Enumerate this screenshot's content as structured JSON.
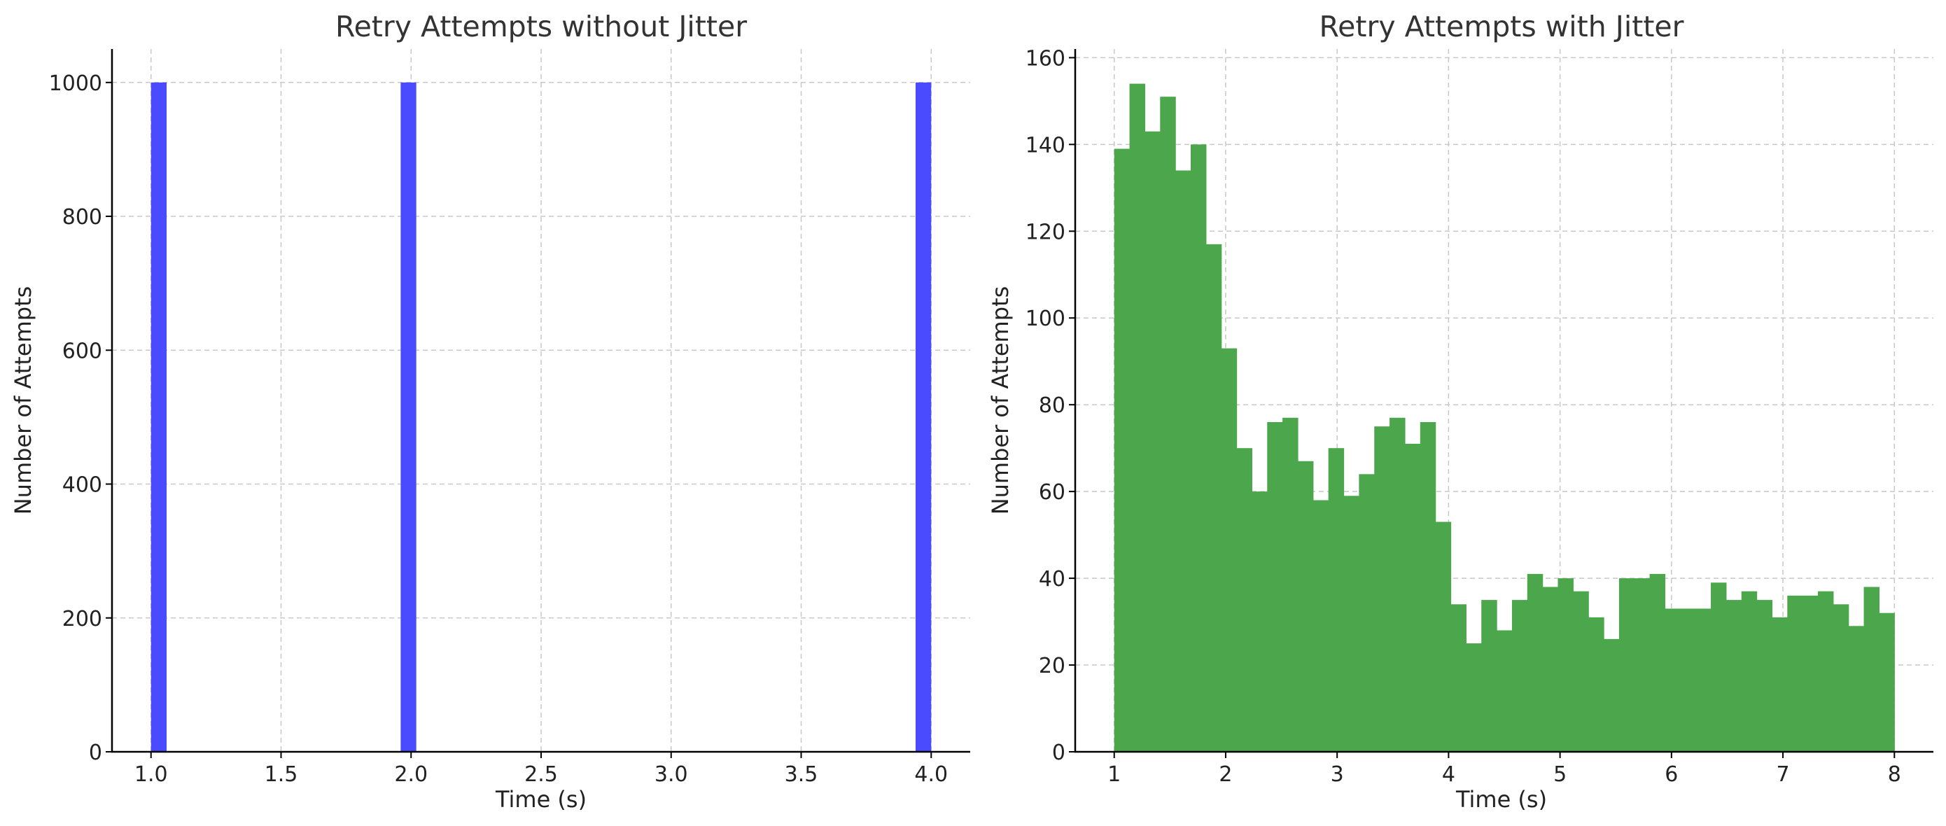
{
  "chart_data": [
    {
      "type": "bar",
      "histogram": true,
      "title": "Retry Attempts without Jitter",
      "xlabel": "Time (s)",
      "ylabel": "Number of Attempts",
      "xlim": [
        0.85,
        4.15
      ],
      "ylim": [
        0,
        1050
      ],
      "xticks": [
        1.0,
        1.5,
        2.0,
        2.5,
        3.0,
        3.5,
        4.0
      ],
      "xtick_labels": [
        "1.0",
        "1.5",
        "2.0",
        "2.5",
        "3.0",
        "3.5",
        "4.0"
      ],
      "yticks": [
        0,
        200,
        400,
        600,
        800,
        1000
      ],
      "ytick_labels": [
        "0",
        "200",
        "400",
        "600",
        "800",
        "1000"
      ],
      "grid": true,
      "color": "#4a4aff",
      "bin_width": 0.06,
      "bin_starts": [
        1.0,
        1.96,
        3.94
      ],
      "values": [
        1000,
        1000,
        1000
      ]
    },
    {
      "type": "bar",
      "histogram": true,
      "title": "Retry Attempts with Jitter",
      "xlabel": "Time (s)",
      "ylabel": "Number of Attempts",
      "xlim": [
        0.65,
        8.35
      ],
      "ylim": [
        0,
        162
      ],
      "xticks": [
        1,
        2,
        3,
        4,
        5,
        6,
        7,
        8
      ],
      "xtick_labels": [
        "1",
        "2",
        "3",
        "4",
        "5",
        "6",
        "7",
        "8"
      ],
      "yticks": [
        0,
        20,
        40,
        60,
        80,
        100,
        120,
        140,
        160
      ],
      "ytick_labels": [
        "0",
        "20",
        "40",
        "60",
        "80",
        "100",
        "120",
        "140",
        "160"
      ],
      "grid": true,
      "color": "#4ca64c",
      "bin_start": 1.0,
      "bin_end": 8.0,
      "values": [
        139,
        154,
        143,
        151,
        134,
        140,
        117,
        93,
        70,
        60,
        76,
        77,
        67,
        58,
        70,
        59,
        64,
        75,
        77,
        71,
        76,
        53,
        34,
        25,
        35,
        28,
        35,
        41,
        38,
        40,
        37,
        31,
        26,
        40,
        40,
        41,
        33,
        33,
        33,
        39,
        35,
        37,
        35,
        31,
        36,
        36,
        37,
        34,
        29,
        38,
        32
      ]
    }
  ]
}
